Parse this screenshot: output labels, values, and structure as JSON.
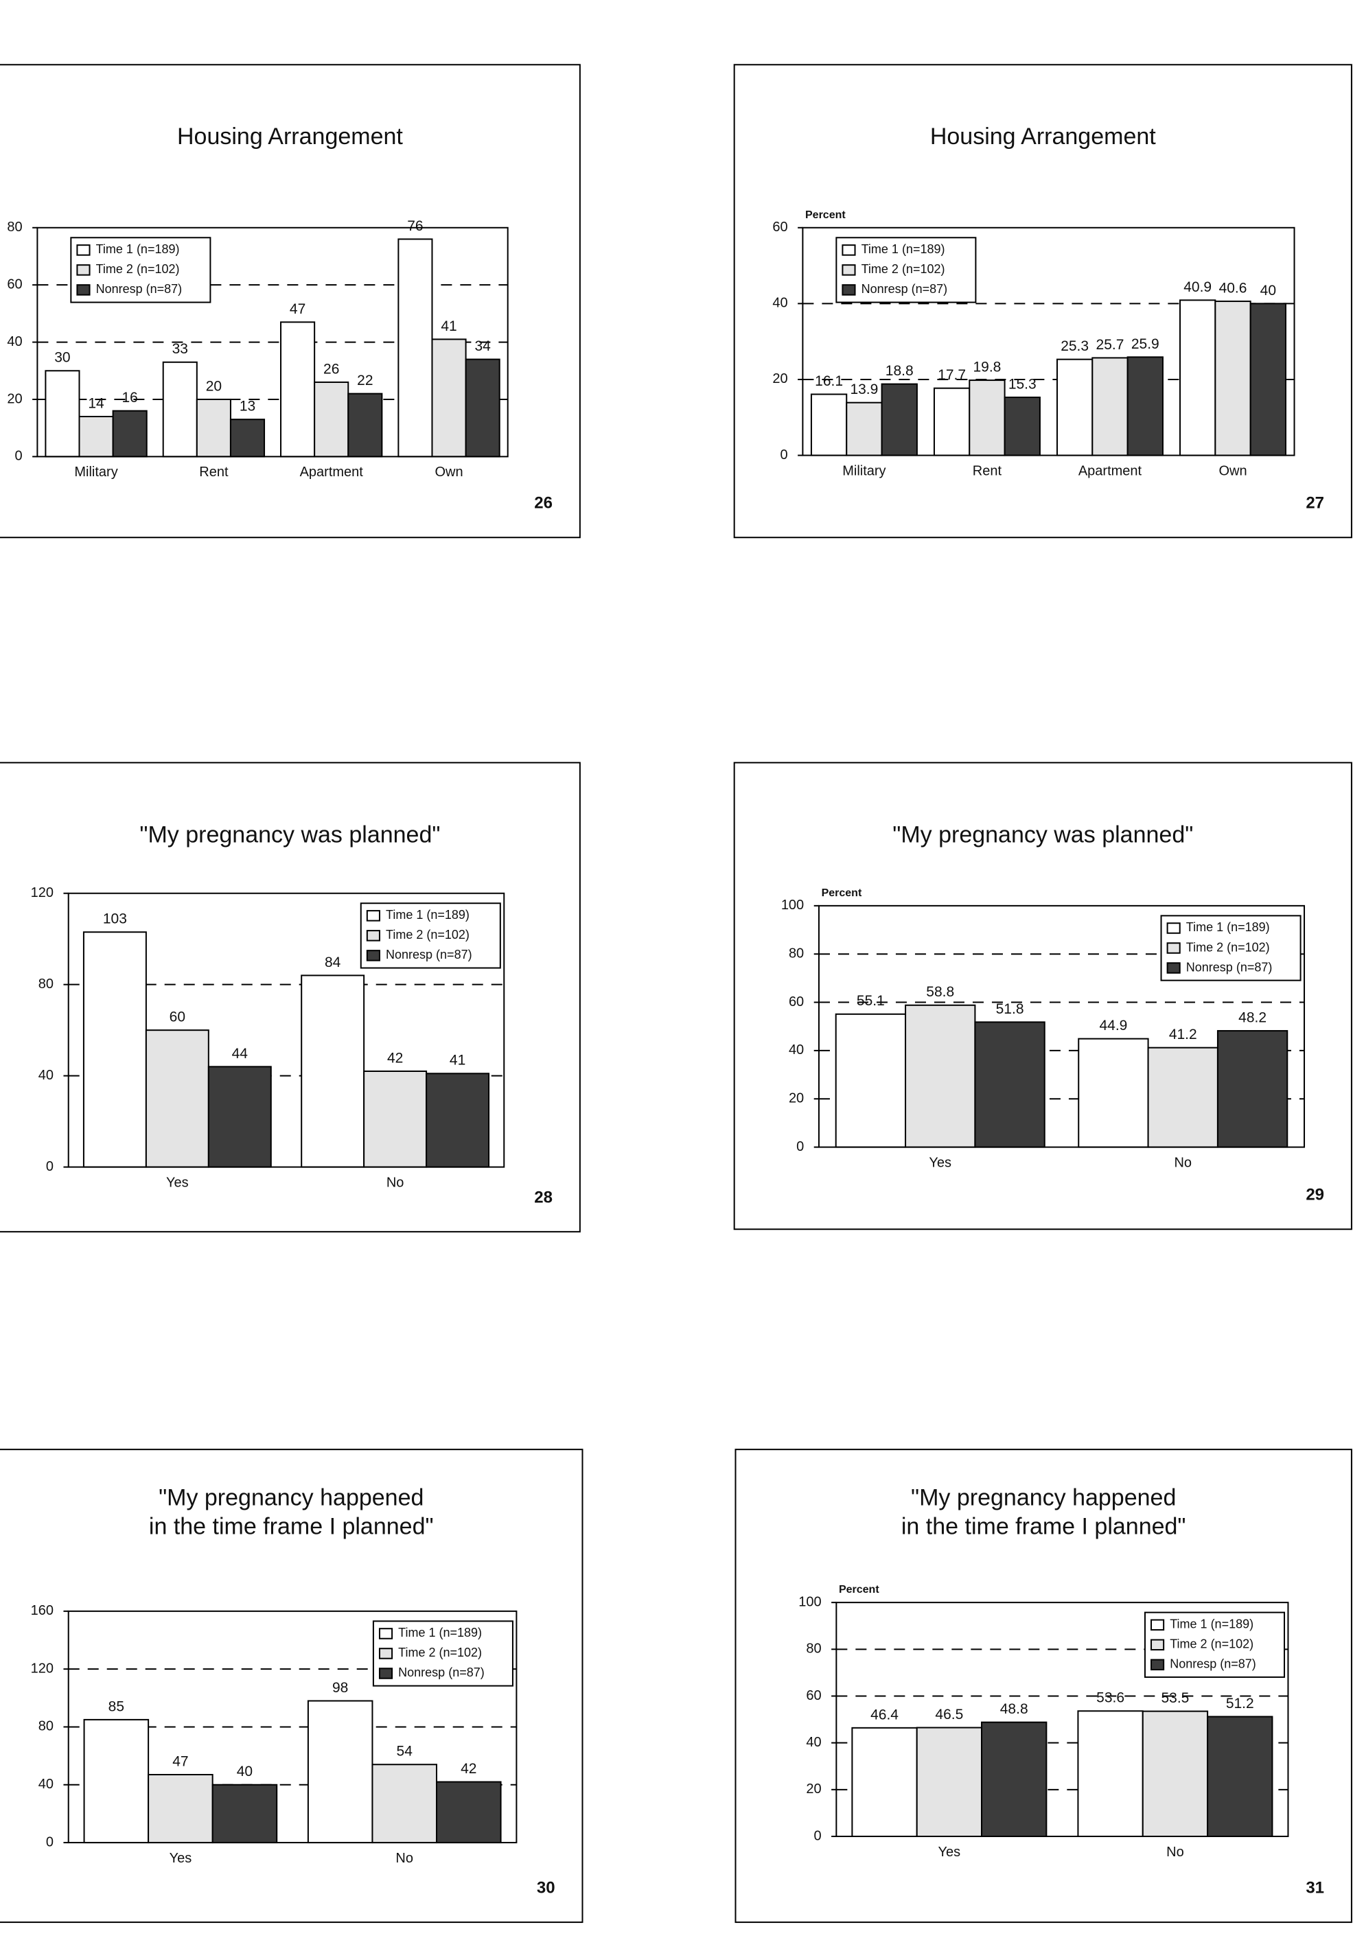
{
  "chart_data": [
    {
      "type": "bar",
      "title": "Housing  Arrangement",
      "slide_number": "26",
      "categories": [
        "Military",
        "Rent",
        "Apartment",
        "Own"
      ],
      "series": [
        {
          "name": "Time 1 (n=189)",
          "color": "#ffffff",
          "values": [
            30,
            33,
            47,
            76
          ]
        },
        {
          "name": "Time 2 (n=102)",
          "color": "#e4e4e4",
          "values": [
            14,
            20,
            26,
            41
          ]
        },
        {
          "name": "Nonresp (n=87)",
          "color": "#3c3c3c",
          "values": [
            16,
            13,
            22,
            34
          ]
        }
      ],
      "ylim": [
        0,
        80
      ],
      "yticks": [
        0,
        20,
        40,
        60,
        80
      ],
      "grid": true,
      "legend": "upper left"
    },
    {
      "type": "bar",
      "title": "Housing  Arrangement",
      "slide_number": "27",
      "y_label": "Percent",
      "categories": [
        "Military",
        "Rent",
        "Apartment",
        "Own"
      ],
      "series": [
        {
          "name": "Time 1 (n=189)",
          "color": "#ffffff",
          "values": [
            16.1,
            17.7,
            25.3,
            40.9
          ]
        },
        {
          "name": "Time 2 (n=102)",
          "color": "#e4e4e4",
          "values": [
            13.9,
            19.8,
            25.7,
            40.6
          ]
        },
        {
          "name": "Nonresp (n=87)",
          "color": "#3c3c3c",
          "values": [
            18.8,
            15.3,
            25.9,
            40
          ]
        }
      ],
      "ylim": [
        0,
        60
      ],
      "yticks": [
        0,
        20,
        40,
        60
      ],
      "grid": true,
      "legend": "upper left"
    },
    {
      "type": "bar",
      "title": "\"My pregnancy was planned\"",
      "slide_number": "28",
      "categories": [
        "Yes",
        "No"
      ],
      "series": [
        {
          "name": "Time 1 (n=189)",
          "color": "#ffffff",
          "values": [
            103,
            84
          ]
        },
        {
          "name": "Time 2 (n=102)",
          "color": "#e4e4e4",
          "values": [
            60,
            42
          ]
        },
        {
          "name": "Nonresp (n=87)",
          "color": "#3c3c3c",
          "values": [
            44,
            41
          ]
        }
      ],
      "ylim": [
        0,
        120
      ],
      "yticks": [
        0,
        40,
        80,
        120
      ],
      "grid": true,
      "legend": "upper right"
    },
    {
      "type": "bar",
      "title": "\"My pregnancy was planned\"",
      "slide_number": "29",
      "y_label": "Percent",
      "categories": [
        "Yes",
        "No"
      ],
      "series": [
        {
          "name": "Time 1 (n=189)",
          "color": "#ffffff",
          "values": [
            55.1,
            44.9
          ]
        },
        {
          "name": "Time 2 (n=102)",
          "color": "#e4e4e4",
          "values": [
            58.8,
            41.2
          ]
        },
        {
          "name": "Nonresp (n=87)",
          "color": "#3c3c3c",
          "values": [
            51.8,
            48.2
          ]
        }
      ],
      "ylim": [
        0,
        100
      ],
      "yticks": [
        0,
        20,
        40,
        60,
        80,
        100
      ],
      "grid": true,
      "legend": "upper right"
    },
    {
      "type": "bar",
      "title": [
        "\"My pregnancy happened",
        "in the time frame I planned\""
      ],
      "slide_number": "30",
      "categories": [
        "Yes",
        "No"
      ],
      "series": [
        {
          "name": "Time 1 (n=189)",
          "color": "#ffffff",
          "values": [
            85,
            98
          ]
        },
        {
          "name": "Time 2 (n=102)",
          "color": "#e4e4e4",
          "values": [
            47,
            54
          ]
        },
        {
          "name": "Nonresp (n=87)",
          "color": "#3c3c3c",
          "values": [
            40,
            42
          ]
        }
      ],
      "ylim": [
        0,
        160
      ],
      "yticks": [
        0,
        40,
        80,
        120,
        160
      ],
      "grid": true,
      "legend": "upper right"
    },
    {
      "type": "bar",
      "title": [
        "\"My pregnancy happened",
        "in the time frame I planned\""
      ],
      "slide_number": "31",
      "y_label": "Percent",
      "categories": [
        "Yes",
        "No"
      ],
      "series": [
        {
          "name": "Time 1 (n=189)",
          "color": "#ffffff",
          "values": [
            46.4,
            53.6
          ]
        },
        {
          "name": "Time 2 (n=102)",
          "color": "#e4e4e4",
          "values": [
            46.5,
            53.5
          ]
        },
        {
          "name": "Nonresp (n=87)",
          "color": "#3c3c3c",
          "values": [
            48.8,
            51.2
          ]
        }
      ],
      "ylim": [
        0,
        100
      ],
      "yticks": [
        0,
        20,
        40,
        60,
        80,
        100
      ],
      "grid": true,
      "legend": "upper right"
    }
  ]
}
